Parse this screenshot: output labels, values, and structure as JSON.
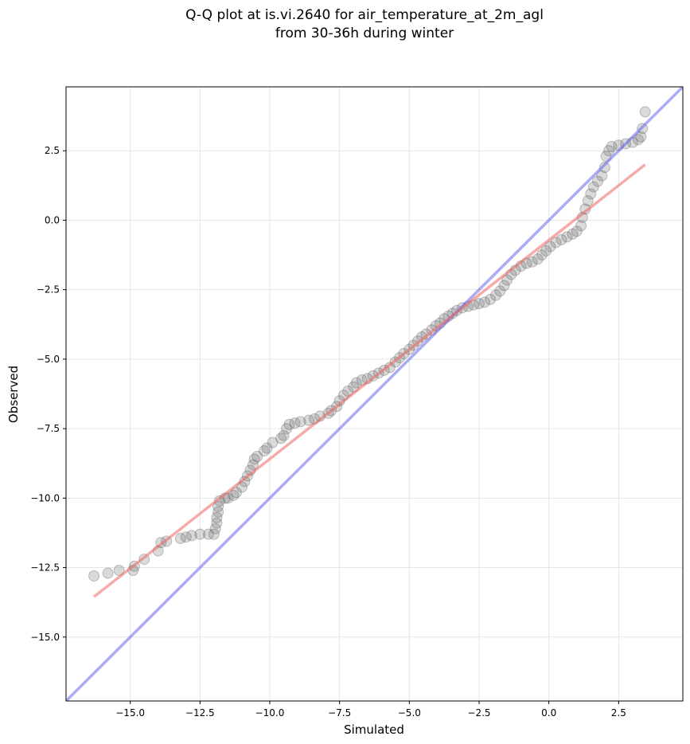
{
  "chart_data": {
    "type": "scatter",
    "title_lines": [
      "Q-Q plot at is.vi.2640 for air_temperature_at_2m_agl",
      "from 30-36h during winter"
    ],
    "xlabel": "Simulated",
    "ylabel": "Observed",
    "xlim": [
      -17.3,
      4.8
    ],
    "ylim": [
      -17.3,
      4.8
    ],
    "x_ticks": [
      {
        "value": -15.0,
        "label": "−15.0"
      },
      {
        "value": -12.5,
        "label": "−12.5"
      },
      {
        "value": -10.0,
        "label": "−10.0"
      },
      {
        "value": -7.5,
        "label": "−7.5"
      },
      {
        "value": -5.0,
        "label": "−5.0"
      },
      {
        "value": -2.5,
        "label": "−2.5"
      },
      {
        "value": 0.0,
        "label": "0.0"
      },
      {
        "value": 2.5,
        "label": "2.5"
      }
    ],
    "y_ticks": [
      {
        "value": 2.5,
        "label": "2.5"
      },
      {
        "value": 0.0,
        "label": "0.0"
      },
      {
        "value": -2.5,
        "label": "−2.5"
      },
      {
        "value": -5.0,
        "label": "−5.0"
      },
      {
        "value": -7.5,
        "label": "−7.5"
      },
      {
        "value": -10.0,
        "label": "−10.0"
      },
      {
        "value": -12.5,
        "label": "−12.5"
      },
      {
        "value": -15.0,
        "label": "−15.0"
      }
    ],
    "grid": true,
    "colors": {
      "points": "#555555",
      "identity_line": "#6666ee",
      "fit_line": "#ee6666"
    },
    "identity_line": {
      "x": [
        -17.3,
        4.8
      ],
      "y": [
        -17.3,
        4.8
      ]
    },
    "fit_line": {
      "x": [
        -16.3,
        3.45
      ],
      "y": [
        -13.55,
        2.0
      ]
    },
    "points": [
      [
        -16.3,
        -12.8
      ],
      [
        -15.8,
        -12.7
      ],
      [
        -15.4,
        -12.6
      ],
      [
        -14.9,
        -12.6
      ],
      [
        -14.85,
        -12.45
      ],
      [
        -14.5,
        -12.2
      ],
      [
        -14.0,
        -11.9
      ],
      [
        -13.9,
        -11.6
      ],
      [
        -13.7,
        -11.55
      ],
      [
        -13.2,
        -11.45
      ],
      [
        -13.0,
        -11.4
      ],
      [
        -12.8,
        -11.35
      ],
      [
        -12.5,
        -11.3
      ],
      [
        -12.2,
        -11.3
      ],
      [
        -12.0,
        -11.3
      ],
      [
        -11.95,
        -11.1
      ],
      [
        -11.9,
        -10.9
      ],
      [
        -11.9,
        -10.7
      ],
      [
        -11.85,
        -10.5
      ],
      [
        -11.85,
        -10.3
      ],
      [
        -11.8,
        -10.1
      ],
      [
        -11.6,
        -10.0
      ],
      [
        -11.5,
        -10.0
      ],
      [
        -11.3,
        -9.9
      ],
      [
        -11.2,
        -9.8
      ],
      [
        -11.0,
        -9.6
      ],
      [
        -10.9,
        -9.4
      ],
      [
        -10.8,
        -9.2
      ],
      [
        -10.7,
        -9.0
      ],
      [
        -10.6,
        -8.8
      ],
      [
        -10.55,
        -8.6
      ],
      [
        -10.45,
        -8.5
      ],
      [
        -10.2,
        -8.3
      ],
      [
        -10.1,
        -8.2
      ],
      [
        -9.9,
        -8.0
      ],
      [
        -9.6,
        -7.85
      ],
      [
        -9.5,
        -7.75
      ],
      [
        -9.4,
        -7.5
      ],
      [
        -9.3,
        -7.35
      ],
      [
        -9.1,
        -7.3
      ],
      [
        -8.9,
        -7.25
      ],
      [
        -8.6,
        -7.2
      ],
      [
        -8.4,
        -7.15
      ],
      [
        -8.2,
        -7.05
      ],
      [
        -7.9,
        -6.95
      ],
      [
        -7.8,
        -6.85
      ],
      [
        -7.6,
        -6.7
      ],
      [
        -7.5,
        -6.5
      ],
      [
        -7.35,
        -6.3
      ],
      [
        -7.2,
        -6.15
      ],
      [
        -7.0,
        -6.0
      ],
      [
        -6.9,
        -5.85
      ],
      [
        -6.7,
        -5.75
      ],
      [
        -6.5,
        -5.7
      ],
      [
        -6.3,
        -5.6
      ],
      [
        -6.1,
        -5.5
      ],
      [
        -5.9,
        -5.4
      ],
      [
        -5.7,
        -5.3
      ],
      [
        -5.5,
        -5.1
      ],
      [
        -5.35,
        -4.95
      ],
      [
        -5.2,
        -4.8
      ],
      [
        -5.0,
        -4.65
      ],
      [
        -4.85,
        -4.5
      ],
      [
        -4.7,
        -4.35
      ],
      [
        -4.55,
        -4.2
      ],
      [
        -4.4,
        -4.1
      ],
      [
        -4.2,
        -3.95
      ],
      [
        -4.05,
        -3.8
      ],
      [
        -3.9,
        -3.7
      ],
      [
        -3.75,
        -3.55
      ],
      [
        -3.6,
        -3.45
      ],
      [
        -3.45,
        -3.35
      ],
      [
        -3.3,
        -3.25
      ],
      [
        -3.1,
        -3.15
      ],
      [
        -2.9,
        -3.1
      ],
      [
        -2.7,
        -3.05
      ],
      [
        -2.5,
        -3.0
      ],
      [
        -2.3,
        -2.95
      ],
      [
        -2.1,
        -2.85
      ],
      [
        -1.9,
        -2.7
      ],
      [
        -1.75,
        -2.55
      ],
      [
        -1.6,
        -2.35
      ],
      [
        -1.5,
        -2.15
      ],
      [
        -1.35,
        -1.95
      ],
      [
        -1.2,
        -1.8
      ],
      [
        -1.0,
        -1.65
      ],
      [
        -0.8,
        -1.55
      ],
      [
        -0.6,
        -1.5
      ],
      [
        -0.4,
        -1.4
      ],
      [
        -0.25,
        -1.25
      ],
      [
        -0.1,
        -1.1
      ],
      [
        0.05,
        -0.95
      ],
      [
        0.25,
        -0.8
      ],
      [
        0.45,
        -0.7
      ],
      [
        0.65,
        -0.6
      ],
      [
        0.85,
        -0.5
      ],
      [
        1.0,
        -0.4
      ],
      [
        1.15,
        -0.2
      ],
      [
        1.2,
        0.1
      ],
      [
        1.3,
        0.4
      ],
      [
        1.4,
        0.7
      ],
      [
        1.5,
        0.95
      ],
      [
        1.6,
        1.2
      ],
      [
        1.75,
        1.4
      ],
      [
        1.9,
        1.6
      ],
      [
        2.0,
        1.9
      ],
      [
        2.05,
        2.3
      ],
      [
        2.15,
        2.5
      ],
      [
        2.25,
        2.65
      ],
      [
        2.5,
        2.7
      ],
      [
        2.75,
        2.75
      ],
      [
        3.0,
        2.8
      ],
      [
        3.2,
        2.9
      ],
      [
        3.3,
        3.0
      ],
      [
        3.35,
        3.3
      ],
      [
        3.45,
        3.9
      ]
    ]
  }
}
